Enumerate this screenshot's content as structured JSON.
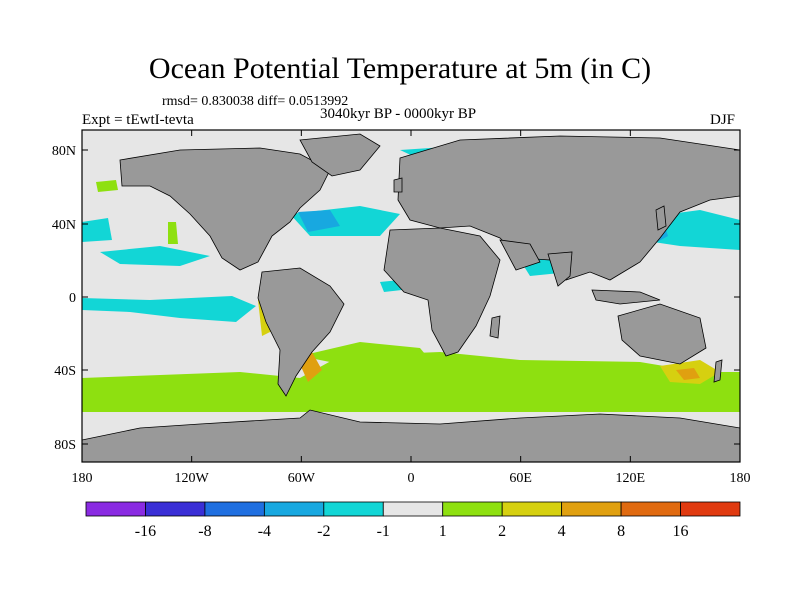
{
  "title": "Ocean Potential Temperature at 5m (in C)",
  "stats_line": "rmsd= 0.830038 diff= 0.0513992",
  "experiment": "Expt = tEwtI-tevta",
  "period": "3040kyr BP - 0000kyr BP",
  "season": "DJF",
  "axes": {
    "x_ticks": [
      "180",
      "120W",
      "60W",
      "0",
      "60E",
      "120E",
      "180"
    ],
    "y_ticks": [
      "80N",
      "40N",
      "0",
      "40S",
      "80S"
    ]
  },
  "colorbar": {
    "colors": [
      "#8a2be2",
      "#3a2fd6",
      "#1f6fe0",
      "#18a8e0",
      "#12d6d6",
      "#e6e6e6",
      "#8ee010",
      "#d6d010",
      "#e0a010",
      "#e06a10",
      "#e03a10"
    ],
    "labels": [
      "-16",
      "-8",
      "-4",
      "-2",
      "-1",
      "1",
      "2",
      "4",
      "8",
      "16"
    ]
  },
  "colors": {
    "land": "#999999",
    "ocean_neutral": "#e6e6e6"
  }
}
